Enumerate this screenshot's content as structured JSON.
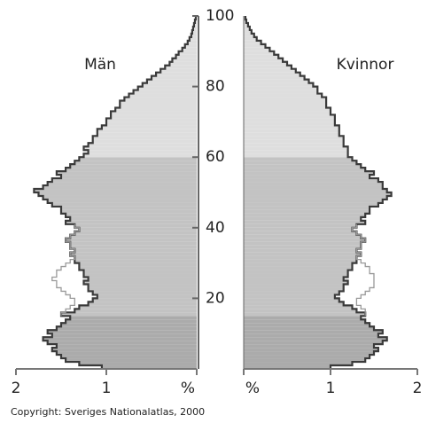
{
  "chart_data": {
    "type": "pyramid",
    "footer": "Copyright: Sveriges Nationalatlas, 2000",
    "ages": [
      0,
      1,
      2,
      3,
      4,
      5,
      6,
      7,
      8,
      9,
      10,
      11,
      12,
      13,
      14,
      15,
      16,
      17,
      18,
      19,
      20,
      21,
      22,
      23,
      24,
      25,
      26,
      27,
      28,
      29,
      30,
      31,
      32,
      33,
      34,
      35,
      36,
      37,
      38,
      39,
      40,
      41,
      42,
      43,
      44,
      45,
      46,
      47,
      48,
      49,
      50,
      51,
      52,
      53,
      54,
      55,
      56,
      57,
      58,
      59,
      60,
      61,
      62,
      63,
      64,
      65,
      66,
      67,
      68,
      69,
      70,
      71,
      72,
      73,
      74,
      75,
      76,
      77,
      78,
      79,
      80,
      81,
      82,
      83,
      84,
      85,
      86,
      87,
      88,
      89,
      90,
      91,
      92,
      93,
      94,
      95,
      96,
      97,
      98,
      99
    ],
    "series": [
      {
        "name": "Män",
        "side": "left",
        "values": [
          1.05,
          1.3,
          1.45,
          1.5,
          1.55,
          1.6,
          1.55,
          1.65,
          1.7,
          1.6,
          1.65,
          1.55,
          1.5,
          1.45,
          1.4,
          1.5,
          1.35,
          1.3,
          1.2,
          1.15,
          1.1,
          1.15,
          1.2,
          1.2,
          1.25,
          1.2,
          1.25,
          1.25,
          1.3,
          1.3,
          1.35,
          1.35,
          1.4,
          1.35,
          1.4,
          1.4,
          1.45,
          1.4,
          1.35,
          1.3,
          1.35,
          1.45,
          1.4,
          1.45,
          1.5,
          1.5,
          1.6,
          1.65,
          1.7,
          1.75,
          1.8,
          1.7,
          1.65,
          1.6,
          1.5,
          1.55,
          1.45,
          1.4,
          1.35,
          1.3,
          1.25,
          1.2,
          1.25,
          1.2,
          1.15,
          1.15,
          1.1,
          1.1,
          1.05,
          1.0,
          1.0,
          0.95,
          0.95,
          0.9,
          0.85,
          0.85,
          0.8,
          0.75,
          0.7,
          0.65,
          0.6,
          0.55,
          0.5,
          0.45,
          0.4,
          0.35,
          0.3,
          0.27,
          0.23,
          0.2,
          0.16,
          0.13,
          0.1,
          0.08,
          0.06,
          0.05,
          0.04,
          0.03,
          0.02,
          0.01
        ]
      },
      {
        "name": "Kvinnor",
        "side": "right",
        "values": [
          1.0,
          1.25,
          1.4,
          1.45,
          1.5,
          1.55,
          1.5,
          1.6,
          1.65,
          1.55,
          1.6,
          1.5,
          1.45,
          1.4,
          1.35,
          1.4,
          1.3,
          1.25,
          1.15,
          1.1,
          1.05,
          1.1,
          1.15,
          1.15,
          1.2,
          1.15,
          1.2,
          1.2,
          1.25,
          1.25,
          1.3,
          1.3,
          1.35,
          1.3,
          1.35,
          1.35,
          1.4,
          1.35,
          1.3,
          1.25,
          1.3,
          1.4,
          1.35,
          1.4,
          1.45,
          1.45,
          1.55,
          1.6,
          1.65,
          1.7,
          1.65,
          1.6,
          1.6,
          1.55,
          1.45,
          1.5,
          1.4,
          1.35,
          1.3,
          1.25,
          1.2,
          1.2,
          1.2,
          1.15,
          1.15,
          1.15,
          1.1,
          1.1,
          1.1,
          1.05,
          1.05,
          1.05,
          1.0,
          1.0,
          0.95,
          0.95,
          0.95,
          0.9,
          0.85,
          0.85,
          0.8,
          0.75,
          0.7,
          0.65,
          0.6,
          0.55,
          0.5,
          0.45,
          0.4,
          0.35,
          0.3,
          0.25,
          0.2,
          0.15,
          0.12,
          0.09,
          0.07,
          0.05,
          0.03,
          0.02
        ]
      }
    ],
    "outline": {
      "color": "#9a9a9a",
      "ages": [
        15,
        16,
        17,
        18,
        19,
        20,
        21,
        22,
        23,
        24,
        25,
        26,
        27,
        28,
        29,
        30,
        31,
        32,
        33,
        34,
        35,
        36,
        37,
        38,
        39,
        40
      ],
      "left": [
        1.5,
        1.45,
        1.4,
        1.35,
        1.35,
        1.4,
        1.45,
        1.5,
        1.55,
        1.55,
        1.6,
        1.55,
        1.55,
        1.5,
        1.45,
        1.4,
        1.35,
        1.4,
        1.35,
        1.4,
        1.4,
        1.45,
        1.4,
        1.35,
        1.3,
        1.35
      ],
      "right": [
        1.4,
        1.4,
        1.35,
        1.3,
        1.3,
        1.35,
        1.4,
        1.45,
        1.5,
        1.5,
        1.5,
        1.5,
        1.45,
        1.45,
        1.4,
        1.35,
        1.3,
        1.35,
        1.3,
        1.35,
        1.35,
        1.4,
        1.35,
        1.3,
        1.25,
        1.3
      ]
    },
    "line_color": "#3a3a3a",
    "bands": [
      {
        "from": 0,
        "to": 15,
        "color": "#ababab"
      },
      {
        "from": 15,
        "to": 60,
        "color": "#c3c3c3"
      },
      {
        "from": 60,
        "to": 100,
        "color": "#dedede"
      }
    ],
    "ylim": [
      0,
      100
    ],
    "yticks": [
      20,
      40,
      60,
      80,
      100
    ],
    "xlim": [
      0,
      2
    ],
    "xticks_left": [
      2,
      1,
      {
        "value": 0,
        "label": "%"
      }
    ],
    "xticks_right": [
      {
        "value": 0,
        "label": "%"
      },
      1,
      2
    ]
  }
}
